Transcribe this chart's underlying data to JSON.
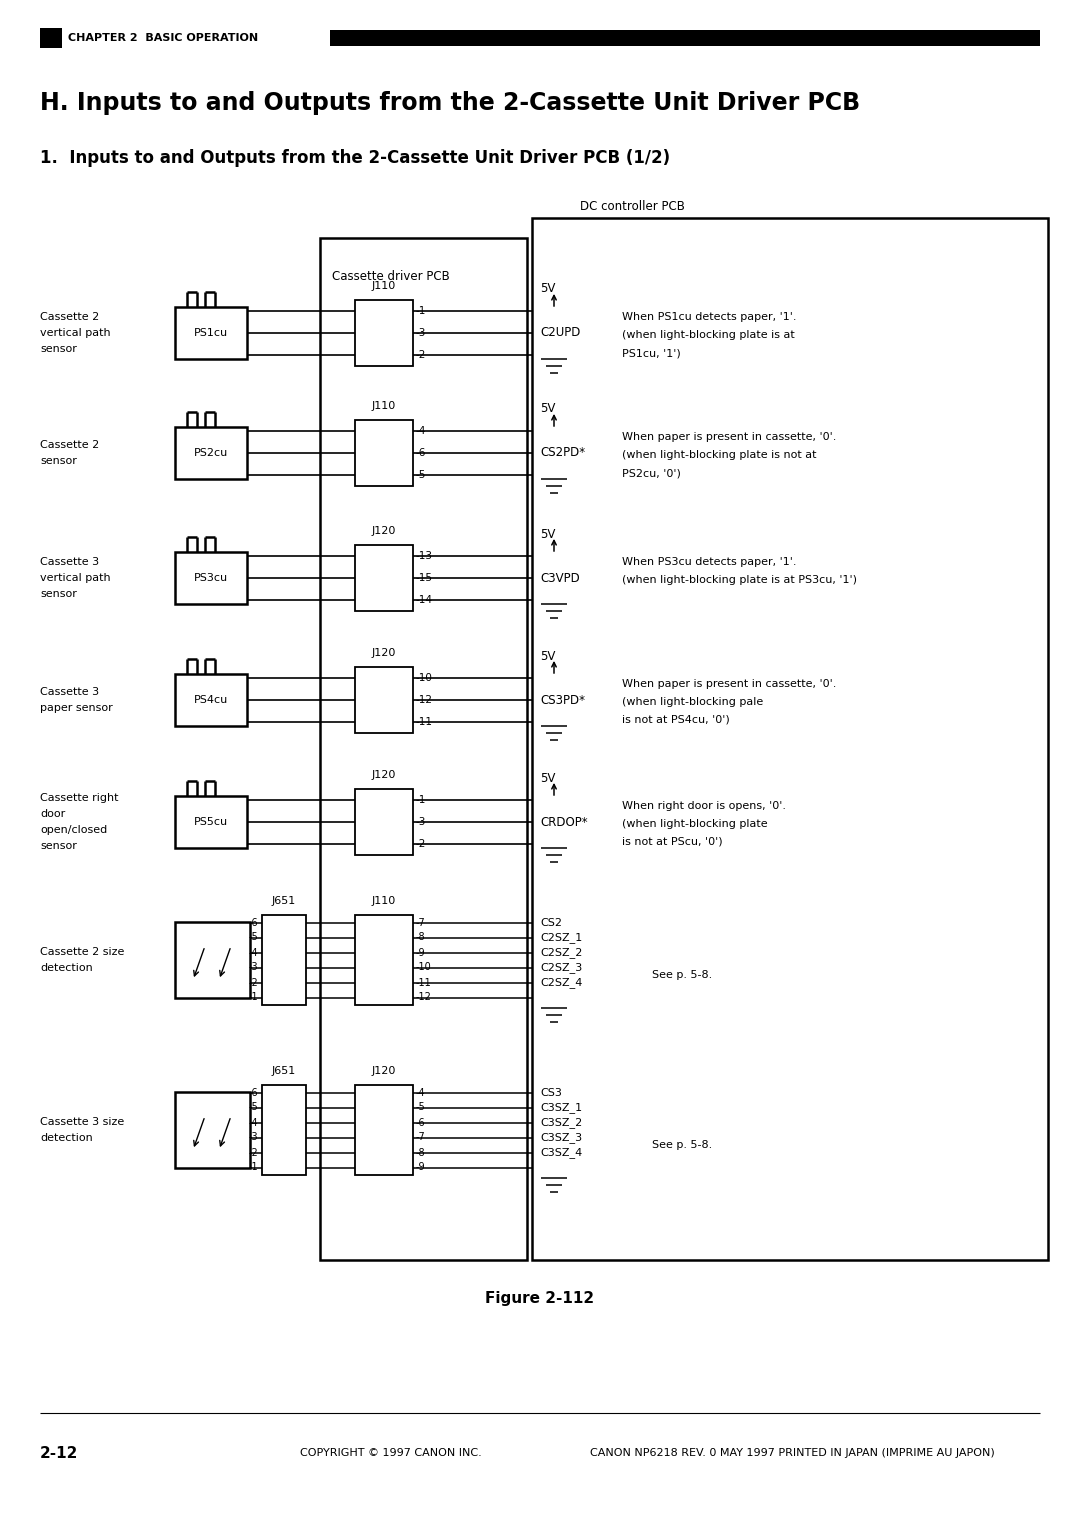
{
  "page_title": "H. Inputs to and Outputs from the 2-Cassette Unit Driver PCB",
  "section_title": "1.  Inputs to and Outputs from the 2-Cassette Unit Driver PCB (1/2)",
  "chapter_header": "CHAPTER 2  BASIC OPERATION",
  "footer_left": "2-12",
  "footer_center": "COPYRIGHT © 1997 CANON INC.",
  "footer_right": "CANON NP6218 REV. 0 MAY 1997 PRINTED IN JAPAN (IMPRIME AU JAPON)",
  "figure_caption": "Figure 2-112",
  "label_cassette_driver_pcb": "Cassette driver PCB",
  "label_dc_controller_pcb": "DC controller PCB",
  "sensors": [
    {
      "left_label": [
        "Cassette 2",
        "vertical path",
        "sensor"
      ],
      "component": "PS1cu",
      "connector": "J110",
      "pins": [
        "-1",
        "-3",
        "-2"
      ],
      "signal": "C2UPD",
      "description": [
        "When PS1cu detects paper, '1'.",
        "(when light-blocking plate is at",
        "PS1cu, '1')"
      ]
    },
    {
      "left_label": [
        "Cassette 2",
        "sensor"
      ],
      "component": "PS2cu",
      "connector": "J110",
      "pins": [
        "-4",
        "-6",
        "-5"
      ],
      "signal": "CS2PD*",
      "description": [
        "When paper is present in cassette, '0'.",
        "(when light-blocking plate is not at",
        "PS2cu, '0')"
      ]
    },
    {
      "left_label": [
        "Cassette 3",
        "vertical path",
        "sensor"
      ],
      "component": "PS3cu",
      "connector": "J120",
      "pins": [
        "-13",
        "-15",
        "-14"
      ],
      "signal": "C3VPD",
      "description": [
        "When PS3cu detects paper, '1'.",
        "(when light-blocking plate is at PS3cu, '1')"
      ]
    },
    {
      "left_label": [
        "Cassette 3",
        "paper sensor"
      ],
      "component": "PS4cu",
      "connector": "J120",
      "pins": [
        "-10",
        "-12",
        "-11"
      ],
      "signal": "CS3PD*",
      "description": [
        "When paper is present in cassette, '0'.",
        "(when light-blocking pale",
        "is not at PS4cu, '0')"
      ]
    },
    {
      "left_label": [
        "Cassette right",
        "door",
        "open/closed",
        "sensor"
      ],
      "component": "PS5cu",
      "connector": "J120",
      "pins": [
        "-1",
        "-3",
        "-2"
      ],
      "signal": "CRDOP*",
      "description": [
        "When right door is opens, '0'.",
        "(when light-blocking plate",
        "is not at PScu, '0')"
      ]
    }
  ],
  "size_detection": [
    {
      "left_label": [
        "Cassette 2 size",
        "detection"
      ],
      "connector1": "J651",
      "connector2": "J110",
      "pins1": [
        "-6",
        "-5",
        "-4",
        "-3",
        "-2",
        "-1"
      ],
      "pins2": [
        "-7",
        "-8",
        "-9",
        "-10",
        "-11",
        "-12"
      ],
      "signals": [
        "CS2",
        "C2SZ_1",
        "C2SZ_2",
        "C2SZ_3",
        "C2SZ_4"
      ],
      "note": "See p. 5-8."
    },
    {
      "left_label": [
        "Cassette 3 size",
        "detection"
      ],
      "connector1": "J651",
      "connector2": "J120",
      "pins1": [
        "-6",
        "-5",
        "-4",
        "-3",
        "-2",
        "-1"
      ],
      "pins2": [
        "-4",
        "-5",
        "-6",
        "-7",
        "-8",
        "-9"
      ],
      "signals": [
        "CS3",
        "C3SZ_1",
        "C3SZ_2",
        "C3SZ_3",
        "C3SZ_4"
      ],
      "note": "See p. 5-8."
    }
  ]
}
